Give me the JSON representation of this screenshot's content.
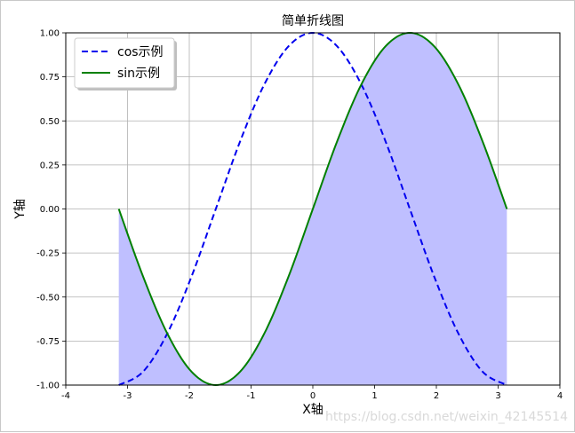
{
  "chart_data": {
    "type": "line",
    "title": "简单折线图",
    "xlabel": "X轴",
    "ylabel": "Y轴",
    "xlim": [
      -4,
      4
    ],
    "ylim": [
      -1.0,
      1.0
    ],
    "x_ticks": [
      "-4",
      "-3",
      "-2",
      "-1",
      "0",
      "1",
      "2",
      "3",
      "4"
    ],
    "y_ticks": [
      "-1.00",
      "-0.75",
      "-0.50",
      "-0.25",
      "0.00",
      "0.25",
      "0.50",
      "0.75",
      "1.00"
    ],
    "grid": true,
    "legend_position": "upper-left",
    "x": [
      -3.1416,
      -2.7489,
      -2.3562,
      -1.9635,
      -1.5708,
      -1.1781,
      -0.7854,
      -0.3927,
      0.0,
      0.3927,
      0.7854,
      1.1781,
      1.5708,
      1.9635,
      2.3562,
      2.7489,
      3.1416
    ],
    "series": [
      {
        "name": "cos示例",
        "color": "#0000ee",
        "style": "dashed",
        "values": [
          -1.0,
          -0.924,
          -0.707,
          -0.383,
          0.0,
          0.383,
          0.707,
          0.924,
          1.0,
          0.924,
          0.707,
          0.383,
          0.0,
          -0.383,
          -0.707,
          -0.924,
          -1.0
        ]
      },
      {
        "name": "sin示例",
        "color": "#008000",
        "style": "solid",
        "values": [
          0.0,
          -0.383,
          -0.707,
          -0.924,
          -1.0,
          -0.924,
          -0.707,
          -0.383,
          0.0,
          0.383,
          0.707,
          0.924,
          1.0,
          0.924,
          0.707,
          0.383,
          0.0
        ],
        "fill_to": -1.0,
        "fill_color": "#bfbfff"
      }
    ]
  },
  "watermark": "https://blog.csdn.net/weixin_42145514"
}
